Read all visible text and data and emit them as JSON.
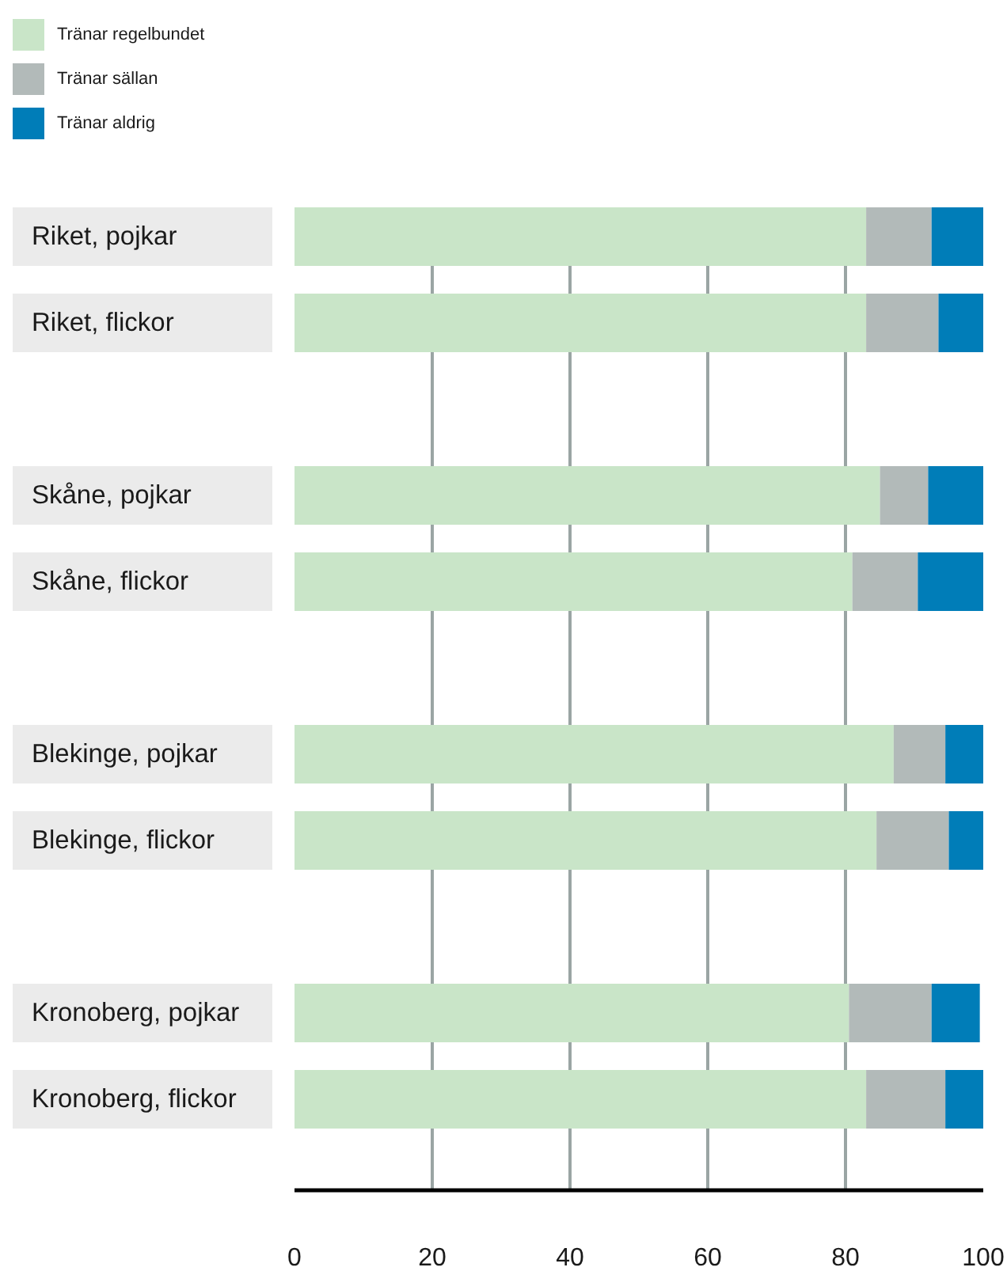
{
  "chart_data": {
    "type": "bar",
    "orientation": "horizontal",
    "stacked": true,
    "categories": [
      "Riket, pojkar",
      "Riket, flickor",
      null,
      "Skåne, pojkar",
      "Skåne, flickor",
      null,
      "Blekinge, pojkar",
      "Blekinge, flickor",
      null,
      "Kronoberg, pojkar",
      "Kronoberg, flickor"
    ],
    "series": [
      {
        "name": "Tränar regelbundet",
        "color": "#c9e5c8",
        "values": [
          83,
          83,
          null,
          85,
          81,
          null,
          87,
          84.5,
          null,
          80.5,
          83
        ]
      },
      {
        "name": "Tränar sällan",
        "color": "#b2bab9",
        "values": [
          9.5,
          10.5,
          null,
          7,
          9.5,
          null,
          7.5,
          10.5,
          null,
          12,
          11.5
        ]
      },
      {
        "name": "Tränar aldrig",
        "color": "#007db8",
        "values": [
          7.5,
          6.5,
          null,
          8,
          9.5,
          null,
          5.5,
          5,
          null,
          7,
          5.5
        ]
      }
    ],
    "xlim": [
      0,
      100
    ],
    "xticks": [
      0,
      20,
      40,
      60,
      80,
      100
    ],
    "grid": "x",
    "legend": "top left"
  }
}
